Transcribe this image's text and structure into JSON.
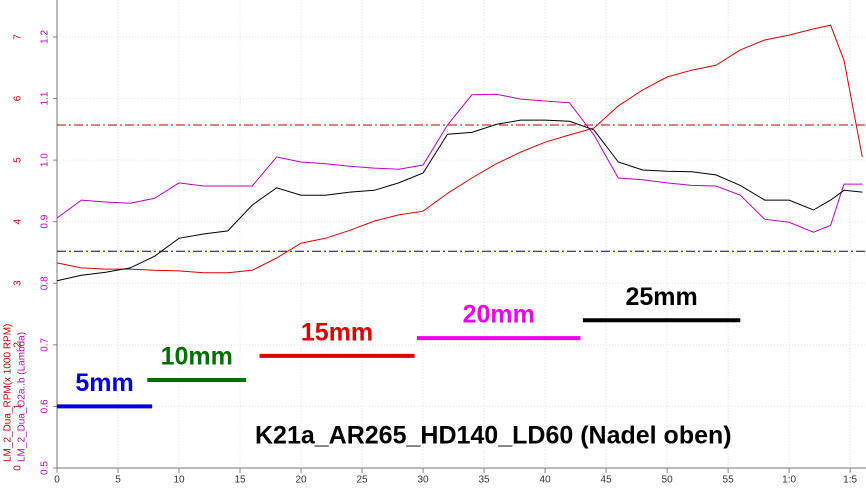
{
  "chart_data": {
    "type": "line",
    "title": "K21a_AR265_HD140_LD60 (Nadel oben)",
    "y_label": "LM_2_Dua_RPM(x 1000 RPM)",
    "y2_label": "LM_2_Dua_O2a..b (Lambda)",
    "y_color": "#c00000",
    "y2_color": "#c000c0",
    "x": [
      0,
      2,
      4,
      6,
      8,
      10,
      12,
      14,
      16,
      18,
      20,
      22,
      24,
      26,
      28,
      30,
      32,
      34,
      36,
      38,
      40,
      42,
      44,
      46,
      48,
      50,
      52,
      54,
      56,
      58,
      60,
      62,
      63.4,
      64.5,
      66
    ],
    "series": [
      {
        "name": "LM_2_Dua_RPM(x 1000 RPM)",
        "color": "#e00000",
        "values": [
          3.33,
          3.25,
          3.23,
          3.23,
          3.21,
          3.2,
          3.17,
          3.17,
          3.21,
          3.41,
          3.65,
          3.73,
          3.86,
          4.01,
          4.11,
          4.17,
          4.46,
          4.71,
          4.94,
          5.13,
          5.29,
          5.41,
          5.52,
          5.88,
          6.14,
          6.35,
          6.46,
          6.54,
          6.79,
          6.95,
          7.03,
          7.13,
          7.19,
          6.62,
          5.05
        ]
      },
      {
        "name": "LM_2_Dua_O2a..b (Lambda)",
        "color": "#c000c0",
        "axis": "y2",
        "values": [
          0.906,
          0.935,
          0.932,
          0.93,
          0.938,
          0.963,
          0.958,
          0.958,
          0.958,
          1.005,
          0.997,
          0.994,
          0.99,
          0.987,
          0.985,
          0.992,
          1.057,
          1.106,
          1.107,
          1.099,
          1.096,
          1.093,
          1.041,
          0.971,
          0.968,
          0.963,
          0.959,
          0.958,
          0.943,
          0.904,
          0.899,
          0.883,
          0.894,
          0.961,
          0.961
        ]
      },
      {
        "color": "#000000",
        "axis": "y2",
        "values": [
          0.804,
          0.813,
          0.818,
          0.825,
          0.844,
          0.873,
          0.88,
          0.885,
          0.927,
          0.955,
          0.943,
          0.943,
          0.948,
          0.951,
          0.963,
          0.979,
          1.042,
          1.045,
          1.058,
          1.065,
          1.065,
          1.063,
          1.049,
          0.997,
          0.984,
          0.982,
          0.981,
          0.976,
          0.959,
          0.935,
          0.935,
          0.919,
          0.935,
          0.951,
          0.948
        ]
      }
    ],
    "xlim": [
      0,
      66.3
    ],
    "xticks": [
      0,
      5,
      10,
      15,
      20,
      25,
      30,
      35,
      40,
      45,
      50,
      55,
      {
        "value": 60,
        "label": "1:0"
      },
      {
        "value": 65,
        "label": "1:5"
      }
    ],
    "ylim": [
      0,
      7.6
    ],
    "yticks": [
      0,
      1,
      2,
      3,
      4,
      5,
      6,
      7
    ],
    "y2lim": [
      0.5,
      1.26
    ],
    "y2ticks": [
      0.5,
      0.6,
      0.7,
      0.8,
      0.9,
      {
        "value": 1,
        "label": "1.0"
      },
      1.1,
      1.2
    ],
    "grid": true,
    "hlines": [
      {
        "value": 5.57,
        "color": "#c00000"
      },
      {
        "value": 3.52,
        "color": "#00008b"
      }
    ],
    "bands": [
      {
        "label": "5mm",
        "color": "#0000e0",
        "x": [
          0,
          7.8
        ],
        "y": 1.0
      },
      {
        "label": "10mm",
        "color": "#007000",
        "x": [
          7.4,
          15.5
        ],
        "y": 1.43
      },
      {
        "label": "15mm",
        "color": "#e00000",
        "x": [
          16.6,
          29.3
        ],
        "y": 1.82
      },
      {
        "label": "20mm",
        "color": "#ee00ee",
        "x": [
          29.5,
          42.9
        ],
        "y": 2.11
      },
      {
        "label": "25mm",
        "color": "#000000",
        "x": [
          43.1,
          56.0
        ],
        "y": 2.4
      }
    ]
  }
}
